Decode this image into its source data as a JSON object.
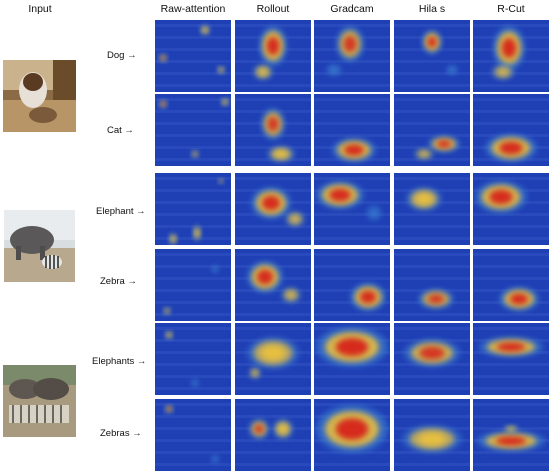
{
  "header": {
    "input": "Input",
    "methods": [
      "Raw-attention",
      "Rollout",
      "Gradcam",
      "Hila s",
      "R-Cut"
    ]
  },
  "rows": [
    {
      "label": "Dog →"
    },
    {
      "label": "Cat →"
    },
    {
      "label": "Elephant →"
    },
    {
      "label": "Zebra →"
    },
    {
      "label": "Elephants →"
    },
    {
      "label": "Zebras →"
    }
  ],
  "icons": {
    "input_1": "dog-and-cat-photo",
    "input_2": "elephant-and-zebra-photo",
    "input_3": "elephants-and-zebras-herd-photo"
  },
  "colors": {
    "cold": "#1f3fb5",
    "cool": "#3a7fd0",
    "warm": "#f2c437",
    "hot": "#d62a1e"
  }
}
